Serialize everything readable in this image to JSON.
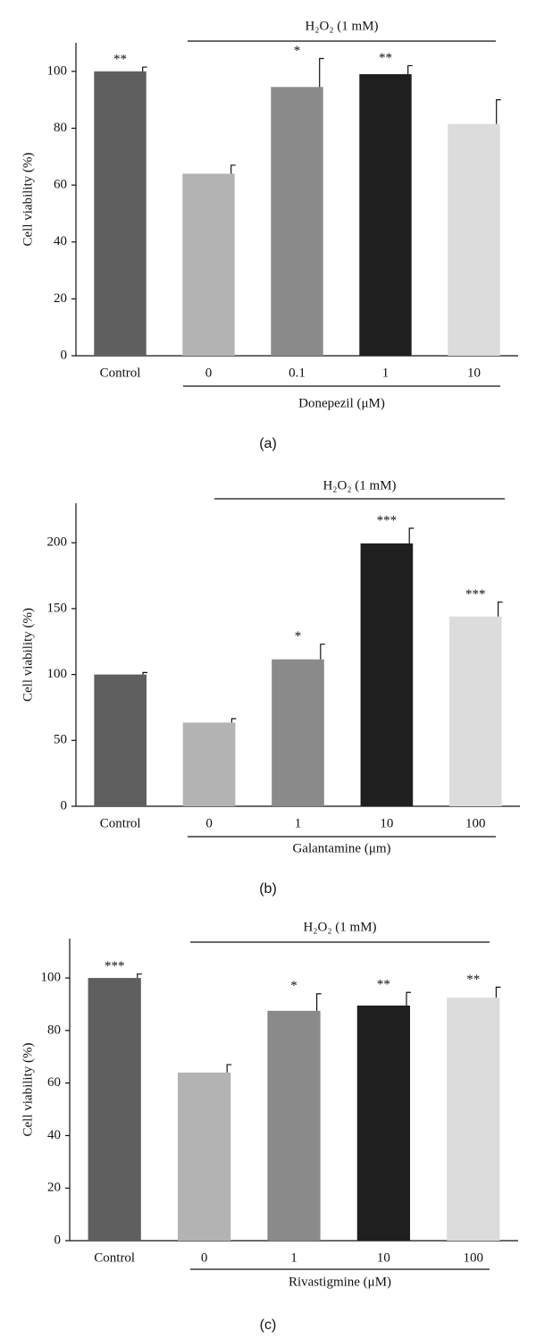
{
  "chart_data": [
    {
      "type": "bar",
      "title": "H₂O₂ (1 mM)",
      "x_label": "Donepezil (μM)",
      "y_label": "Cell viability (%)",
      "panel_label": "(a)",
      "categories": [
        "Control",
        "0",
        "0.1",
        "1",
        "10"
      ],
      "values": [
        100,
        64,
        94.5,
        99,
        81.5
      ],
      "errors": [
        1.5,
        3,
        10,
        3,
        8.5
      ],
      "annotations": [
        "**",
        null,
        "*",
        "**",
        null
      ],
      "colors": [
        "#5f5f5f",
        "#b3b3b3",
        "#8a8a8a",
        "#1f1f1f",
        "#dcdcdc"
      ],
      "ylim": [
        0,
        110
      ],
      "yticks": [
        0,
        20,
        40,
        60,
        80,
        100
      ]
    },
    {
      "type": "bar",
      "title": "H₂O₂ (1 mM)",
      "x_label": "Galantamine (μm)",
      "y_label": "Cell viability (%)",
      "panel_label": "(b)",
      "categories": [
        "Control",
        "0",
        "1",
        "10",
        "100"
      ],
      "values": [
        100,
        63.5,
        111.5,
        199.5,
        144
      ],
      "errors": [
        1.5,
        3,
        11.5,
        11.5,
        11
      ],
      "annotations": [
        null,
        null,
        "*",
        "***",
        "***"
      ],
      "colors": [
        "#5f5f5f",
        "#b3b3b3",
        "#8a8a8a",
        "#1f1f1f",
        "#dcdcdc"
      ],
      "ylim": [
        0,
        230
      ],
      "yticks": [
        0,
        50,
        100,
        150,
        200
      ]
    },
    {
      "type": "bar",
      "title": "H₂O₂ (1 mM)",
      "x_label": "Rivastigmine (μM)",
      "y_label": "Cell viability (%)",
      "panel_label": "(c)",
      "categories": [
        "Control",
        "0",
        "1",
        "10",
        "100"
      ],
      "values": [
        100,
        64,
        87.5,
        89.5,
        92.5
      ],
      "errors": [
        1.5,
        3,
        6.5,
        5,
        4
      ],
      "annotations": [
        "***",
        null,
        "*",
        "**",
        "**"
      ],
      "colors": [
        "#5f5f5f",
        "#b3b3b3",
        "#8a8a8a",
        "#1f1f1f",
        "#dcdcdc"
      ],
      "ylim": [
        0,
        115
      ],
      "yticks": [
        0,
        20,
        40,
        60,
        80,
        100
      ]
    }
  ]
}
